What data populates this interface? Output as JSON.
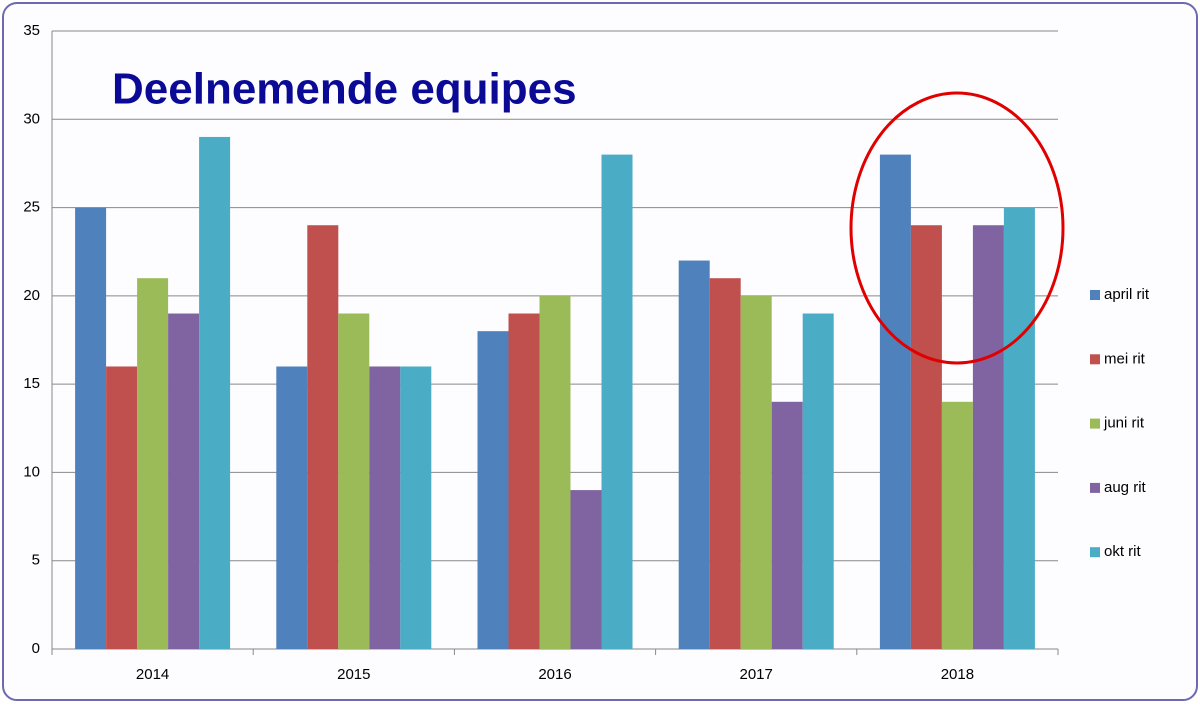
{
  "chart_data": {
    "type": "bar",
    "title": "Deelnemende equipes",
    "categories": [
      "2014",
      "2015",
      "2016",
      "2017",
      "2018"
    ],
    "series": [
      {
        "name": "april rit",
        "color": "#4f81bd",
        "values": [
          25,
          16,
          18,
          22,
          28
        ]
      },
      {
        "name": "mei rit",
        "color": "#c0504d",
        "values": [
          16,
          24,
          19,
          21,
          24
        ]
      },
      {
        "name": "juni rit",
        "color": "#9bbb59",
        "values": [
          21,
          19,
          20,
          20,
          14
        ]
      },
      {
        "name": "aug rit",
        "color": "#8064a2",
        "values": [
          19,
          16,
          9,
          14,
          24
        ]
      },
      {
        "name": "okt rit",
        "color": "#4bacc6",
        "values": [
          29,
          16,
          28,
          19,
          25
        ]
      }
    ],
    "ylim": [
      0,
      35
    ],
    "yticks": [
      0,
      5,
      10,
      15,
      20,
      25,
      30,
      35
    ],
    "grid": true,
    "legend": "right"
  }
}
